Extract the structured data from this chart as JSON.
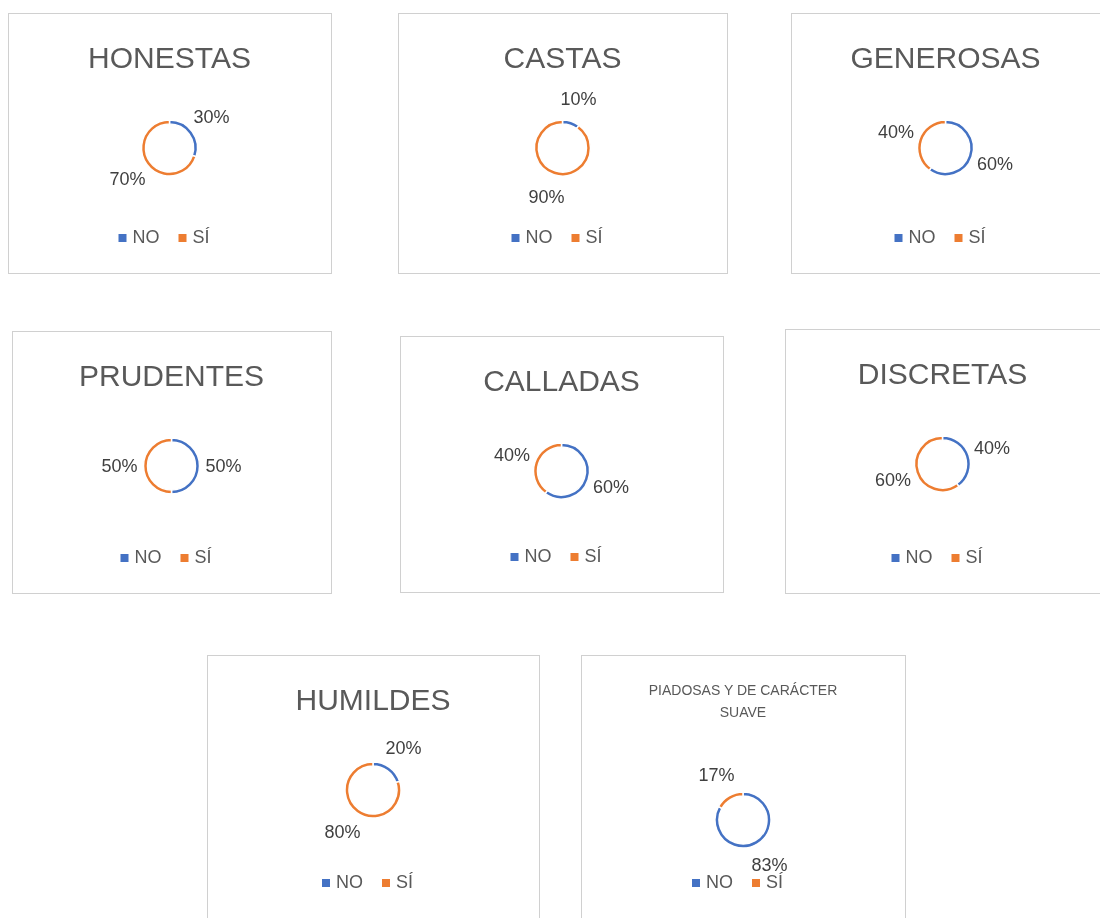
{
  "chart_data": [
    {
      "type": "donut",
      "title": "HONESTAS",
      "categories": [
        "NO",
        "SÍ"
      ],
      "values": [
        30,
        70
      ],
      "value_labels": [
        "30%",
        "70%"
      ],
      "colors": [
        "#4472c4",
        "#ed7d31"
      ],
      "legend": "bottom"
    },
    {
      "type": "donut",
      "title": "CASTAS",
      "categories": [
        "NO",
        "SÍ"
      ],
      "values": [
        10,
        90
      ],
      "value_labels": [
        "10%",
        "90%"
      ],
      "colors": [
        "#4472c4",
        "#ed7d31"
      ],
      "legend": "bottom"
    },
    {
      "type": "donut",
      "title": "GENEROSAS",
      "categories": [
        "NO",
        "SÍ"
      ],
      "values": [
        60,
        40
      ],
      "value_labels": [
        "60%",
        "40%"
      ],
      "colors": [
        "#4472c4",
        "#ed7d31"
      ],
      "legend": "bottom"
    },
    {
      "type": "donut",
      "title": "PRUDENTES",
      "categories": [
        "NO",
        "SÍ"
      ],
      "values": [
        50,
        50
      ],
      "value_labels": [
        "50%",
        "50%"
      ],
      "colors": [
        "#4472c4",
        "#ed7d31"
      ],
      "legend": "bottom"
    },
    {
      "type": "donut",
      "title": "CALLADAS",
      "categories": [
        "NO",
        "SÍ"
      ],
      "values": [
        60,
        40
      ],
      "value_labels": [
        "60%",
        "40%"
      ],
      "colors": [
        "#4472c4",
        "#ed7d31"
      ],
      "legend": "bottom"
    },
    {
      "type": "donut",
      "title": "DISCRETAS",
      "categories": [
        "NO",
        "SÍ"
      ],
      "values": [
        40,
        60
      ],
      "value_labels": [
        "40%",
        "60%"
      ],
      "colors": [
        "#4472c4",
        "#ed7d31"
      ],
      "legend": "bottom"
    },
    {
      "type": "donut",
      "title": "HUMILDES",
      "categories": [
        "NO",
        "SÍ"
      ],
      "values": [
        20,
        80
      ],
      "value_labels": [
        "20%",
        "80%"
      ],
      "colors": [
        "#4472c4",
        "#ed7d31"
      ],
      "legend": "bottom"
    },
    {
      "type": "donut",
      "title": "PIADOSAS Y DE CARÁCTER SUAVE",
      "categories": [
        "NO",
        "SÍ"
      ],
      "values": [
        83,
        17
      ],
      "value_labels": [
        "83%",
        "17%"
      ],
      "colors": [
        "#4472c4",
        "#ed7d31"
      ],
      "legend": "bottom"
    }
  ]
}
